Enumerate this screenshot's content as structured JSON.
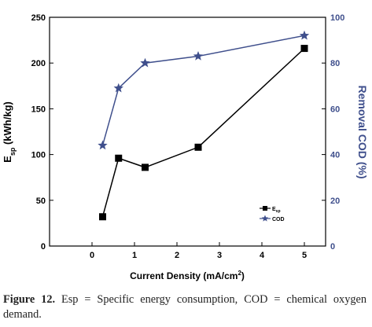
{
  "chart_data": {
    "type": "line",
    "x": [
      0.25,
      0.625,
      1.25,
      2.5,
      5
    ],
    "xlabel": "Current Density (mA/cm",
    "xlabel_superscript": "2",
    "xlabel_suffix": ")",
    "xlim": [
      -1,
      5.5
    ],
    "xticks": [
      0,
      1,
      2,
      3,
      4,
      5
    ],
    "y_left": {
      "label_main": "E",
      "label_subscript": "sp",
      "label_suffix": " (kWh/kg)",
      "lim": [
        0,
        250
      ],
      "ticks": [
        0,
        50,
        100,
        150,
        200,
        250
      ]
    },
    "y_right": {
      "label": "Removal COD (%)",
      "lim": [
        0,
        100
      ],
      "ticks": [
        0,
        20,
        40,
        60,
        80,
        100
      ],
      "color": "#3f4f8c"
    },
    "series": [
      {
        "name": "E",
        "name_subscript": "sp",
        "axis": "left",
        "marker": "square",
        "color": "#000000",
        "values": [
          32,
          96,
          86,
          108,
          216
        ]
      },
      {
        "name": "COD",
        "axis": "right",
        "marker": "star",
        "color": "#3f4f8c",
        "values": [
          44,
          69,
          80,
          83,
          92
        ]
      }
    ],
    "legend_position": "lower-right"
  },
  "caption": {
    "label": "Figure 12.",
    "text": " Esp = Specific energy consumption, COD = chemical oxygen demand."
  }
}
